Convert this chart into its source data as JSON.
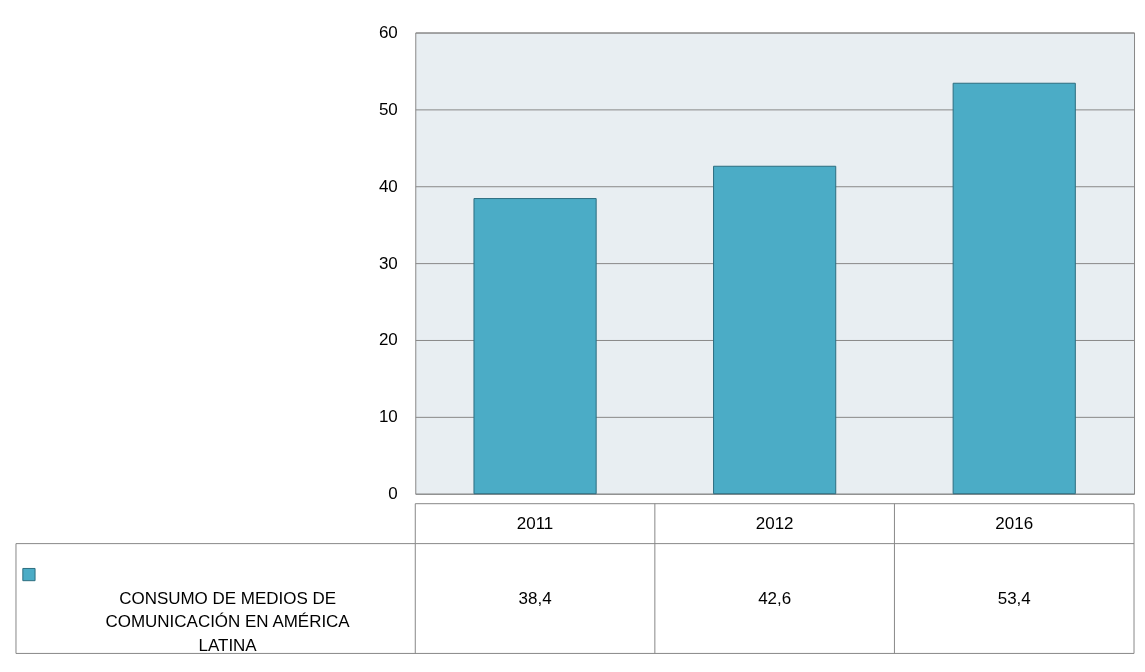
{
  "chart_data": {
    "type": "bar",
    "categories": [
      "2011",
      "2012",
      "2016"
    ],
    "series": [
      {
        "name": "CONSUMO DE MEDIOS DE COMUNICACIÓN EN AMÉRICA LATINA",
        "color": "#4bacc6",
        "values": [
          38.4,
          42.6,
          53.4
        ],
        "value_labels": [
          "38,4",
          "42,6",
          "53,4"
        ]
      }
    ],
    "ylim": [
      0,
      60
    ],
    "yticks": [
      0,
      10,
      20,
      30,
      40,
      50,
      60
    ],
    "grid": "y"
  }
}
